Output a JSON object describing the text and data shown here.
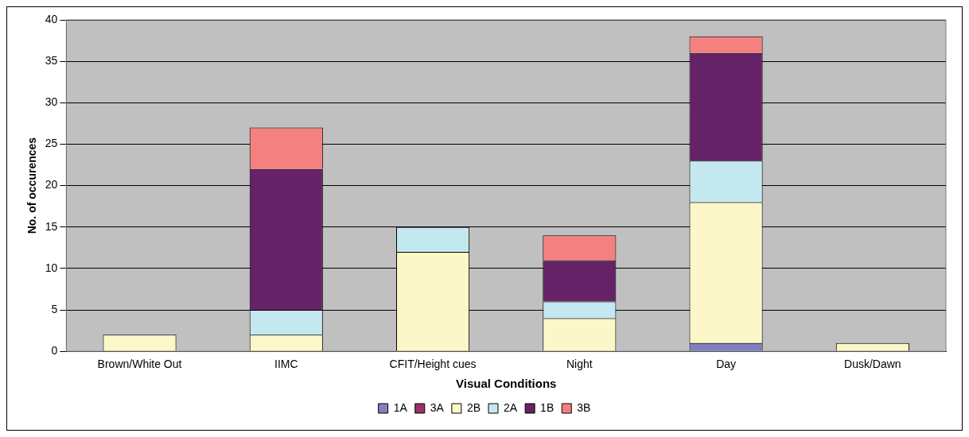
{
  "chart_data": {
    "type": "bar",
    "stacked": true,
    "xlabel": "Visual Conditions",
    "ylabel": "No. of occurences",
    "categories": [
      "Brown/White Out",
      "IIMC",
      "CFIT/Height cues",
      "Night",
      "Day",
      "Dusk/Dawn"
    ],
    "series": [
      {
        "name": "1A",
        "color": "#8080c0",
        "values": [
          0,
          0,
          0,
          0,
          1,
          0
        ]
      },
      {
        "name": "3A",
        "color": "#993366",
        "values": [
          0,
          0,
          0,
          0,
          0,
          0
        ]
      },
      {
        "name": "2B",
        "color": "#fbf7c8",
        "values": [
          2,
          2,
          12,
          4,
          17,
          1
        ]
      },
      {
        "name": "2A",
        "color": "#c4e8ef",
        "values": [
          0,
          3,
          3,
          2,
          5,
          0
        ]
      },
      {
        "name": "1B",
        "color": "#662266",
        "values": [
          0,
          17,
          0,
          5,
          13,
          0
        ]
      },
      {
        "name": "3B",
        "color": "#f58080",
        "values": [
          0,
          5,
          0,
          3,
          2,
          0
        ]
      }
    ],
    "ylim": [
      0,
      40
    ],
    "yticks": [
      0,
      5,
      10,
      15,
      20,
      25,
      30,
      35,
      40
    ],
    "grid": "y",
    "legend": "bottom"
  }
}
